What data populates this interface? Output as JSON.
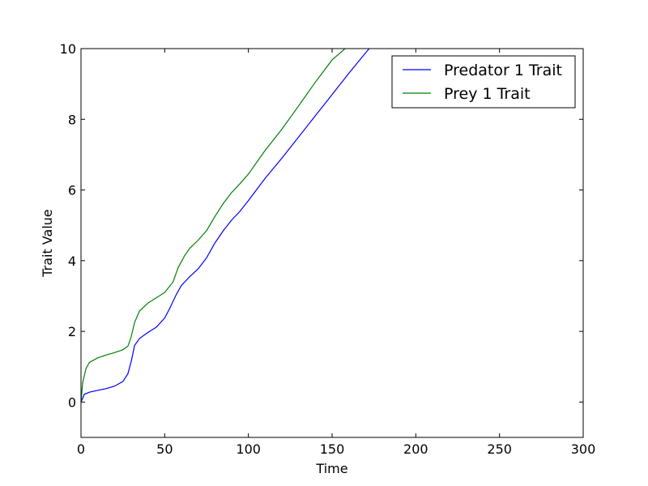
{
  "chart_data": {
    "type": "line",
    "title": "",
    "xlabel": "Time",
    "ylabel": "Trait Value",
    "xlim": [
      0,
      300
    ],
    "ylim": [
      -1,
      10
    ],
    "xticks": [
      0,
      50,
      100,
      150,
      200,
      250,
      300
    ],
    "yticks": [
      0,
      2,
      4,
      6,
      8,
      10
    ],
    "grid": false,
    "legend_position": "top-right",
    "series": [
      {
        "name": "Predator 1 Trait",
        "color": "#0000ff",
        "x": [
          0,
          2,
          5,
          10,
          15,
          20,
          25,
          28,
          30,
          32,
          35,
          40,
          45,
          50,
          53,
          57,
          60,
          65,
          70,
          75,
          80,
          85,
          90,
          95,
          100,
          110,
          120,
          130,
          140,
          150,
          160,
          170,
          173
        ],
        "y": [
          0.0,
          0.22,
          0.28,
          0.33,
          0.38,
          0.45,
          0.58,
          0.8,
          1.15,
          1.6,
          1.8,
          1.97,
          2.12,
          2.38,
          2.65,
          3.05,
          3.3,
          3.55,
          3.77,
          4.08,
          4.5,
          4.85,
          5.15,
          5.4,
          5.7,
          6.33,
          6.9,
          7.5,
          8.1,
          8.7,
          9.3,
          9.88,
          10.05
        ]
      },
      {
        "name": "Prey 1 Trait",
        "color": "#008000",
        "x": [
          0,
          1,
          3,
          5,
          10,
          15,
          20,
          25,
          28,
          30,
          32,
          35,
          40,
          45,
          50,
          55,
          58,
          62,
          65,
          70,
          75,
          80,
          85,
          90,
          95,
          100,
          110,
          120,
          130,
          140,
          150,
          159
        ],
        "y": [
          0.0,
          0.55,
          0.95,
          1.12,
          1.25,
          1.33,
          1.4,
          1.48,
          1.58,
          1.85,
          2.25,
          2.58,
          2.8,
          2.95,
          3.1,
          3.4,
          3.8,
          4.15,
          4.35,
          4.58,
          4.85,
          5.25,
          5.62,
          5.93,
          6.18,
          6.45,
          7.12,
          7.72,
          8.38,
          9.05,
          9.68,
          10.05
        ]
      }
    ]
  }
}
